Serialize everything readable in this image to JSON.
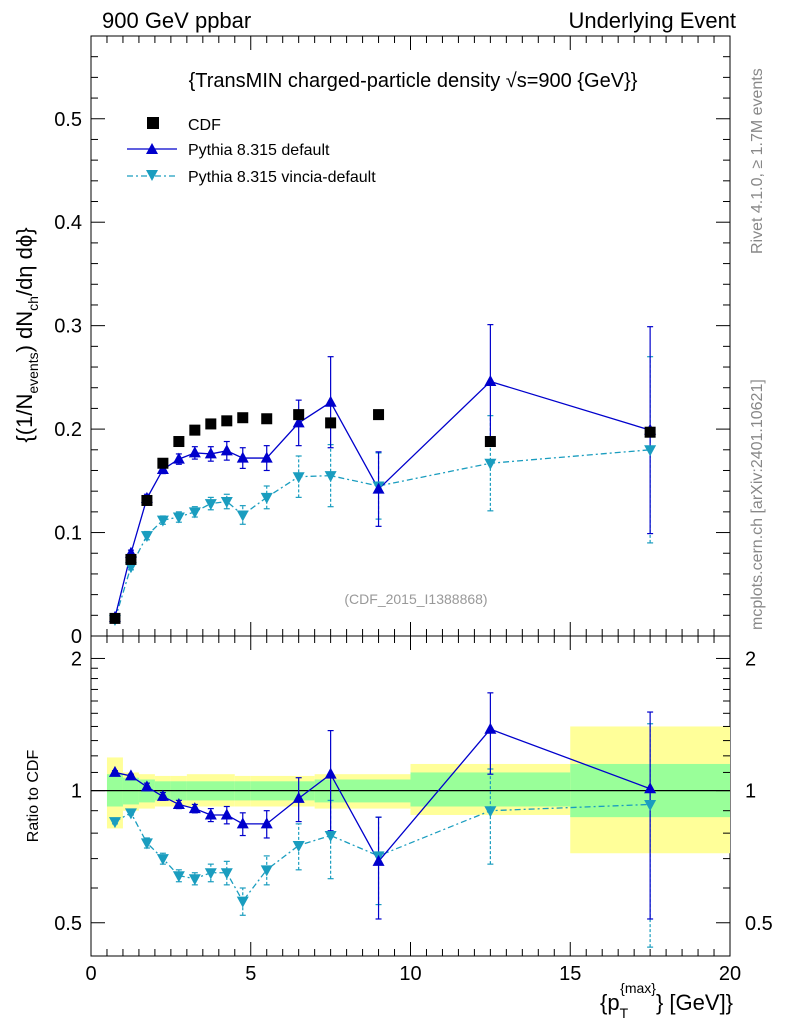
{
  "header": {
    "left": "900 GeV ppbar",
    "right": "Underlying Event"
  },
  "side_labels": {
    "upper": "Rivet 4.1.0, ≥ 1.7M events",
    "lower": "mcplots.cern.ch [arXiv:2401.10621]"
  },
  "colors": {
    "cdf": "#000000",
    "pythia": "#0000cc",
    "vincia": "#1a9dbf",
    "band_yellow": "#ffff99",
    "band_green": "#99ff99"
  },
  "chart_data": [
    {
      "type": "scatter",
      "title": "{TransMIN charged-particle density √s=900 {GeV}}",
      "ylabel": "{(1/N_events) dN_ch/dη dϕ}",
      "xlabel": "{p_T^{max}} [GeV]",
      "analysis_tag": "(CDF_2015_I1388868)",
      "xlim": [
        0,
        20
      ],
      "ylim": [
        0,
        0.58
      ],
      "yticks": [
        0,
        0.1,
        0.2,
        0.3,
        0.4,
        0.5
      ],
      "ytick_labels": [
        "0",
        "0.1",
        "0.2",
        "0.3",
        "0.4",
        "0.5"
      ],
      "xticks": [
        0,
        5,
        10,
        15,
        20
      ],
      "xtick_labels": [
        "0",
        "5",
        "10",
        "15",
        "20"
      ],
      "legend": [
        "CDF",
        "Pythia 8.315 default",
        "Pythia 8.315 vincia-default"
      ],
      "series": [
        {
          "name": "CDF",
          "style": "square",
          "x": [
            0.75,
            1.25,
            1.75,
            2.25,
            2.75,
            3.25,
            3.75,
            4.25,
            4.75,
            5.5,
            6.5,
            7.5,
            9.0,
            12.5,
            17.5
          ],
          "y": [
            0.017,
            0.074,
            0.131,
            0.167,
            0.188,
            0.199,
            0.205,
            0.208,
            0.211,
            0.21,
            0.214,
            0.206,
            0.214,
            0.188,
            0.197
          ]
        },
        {
          "name": "Pythia 8.315 default",
          "style": "triangle-up",
          "x": [
            0.75,
            1.25,
            1.75,
            2.25,
            2.75,
            3.25,
            3.75,
            4.25,
            4.75,
            5.5,
            6.5,
            7.5,
            9.0,
            12.5,
            17.5
          ],
          "y": [
            0.018,
            0.08,
            0.133,
            0.161,
            0.171,
            0.177,
            0.176,
            0.179,
            0.172,
            0.172,
            0.206,
            0.226,
            0.142,
            0.246,
            0.199
          ],
          "err": [
            0.002,
            0.003,
            0.004,
            0.004,
            0.005,
            0.006,
            0.007,
            0.009,
            0.01,
            0.012,
            0.022,
            0.044,
            0.036,
            0.055,
            0.1
          ]
        },
        {
          "name": "Pythia 8.315 vincia-default",
          "style": "triangle-down",
          "x": [
            0.75,
            1.25,
            1.75,
            2.25,
            2.75,
            3.25,
            3.75,
            4.25,
            4.75,
            5.5,
            6.5,
            7.5,
            9.0,
            12.5,
            17.5
          ],
          "y": [
            0.016,
            0.067,
            0.097,
            0.112,
            0.115,
            0.12,
            0.128,
            0.13,
            0.117,
            0.134,
            0.154,
            0.155,
            0.145,
            0.167,
            0.18
          ],
          "err": [
            0.002,
            0.003,
            0.004,
            0.004,
            0.005,
            0.005,
            0.006,
            0.007,
            0.009,
            0.011,
            0.02,
            0.03,
            0.032,
            0.046,
            0.09
          ]
        }
      ]
    },
    {
      "type": "scatter",
      "ylabel": "Ratio to CDF",
      "xlim": [
        0,
        20
      ],
      "ylim": [
        0.42,
        2.25
      ],
      "yscale": "log",
      "yticks": [
        0.5,
        1,
        2
      ],
      "ytick_labels": [
        "0.5",
        "1",
        "2"
      ],
      "bands": [
        {
          "x0": 0.5,
          "x1": 1.0,
          "stat": [
            0.92,
            1.09
          ],
          "total": [
            0.82,
            1.19
          ]
        },
        {
          "x0": 1.0,
          "x1": 1.5,
          "stat": [
            0.93,
            1.07
          ],
          "total": [
            0.9,
            1.1
          ]
        },
        {
          "x0": 1.5,
          "x1": 2.0,
          "stat": [
            0.94,
            1.06
          ],
          "total": [
            0.91,
            1.09
          ]
        },
        {
          "x0": 2.0,
          "x1": 2.5,
          "stat": [
            0.95,
            1.05
          ],
          "total": [
            0.92,
            1.08
          ]
        },
        {
          "x0": 2.5,
          "x1": 3.0,
          "stat": [
            0.95,
            1.05
          ],
          "total": [
            0.92,
            1.08
          ]
        },
        {
          "x0": 3.0,
          "x1": 4.5,
          "stat": [
            0.95,
            1.05
          ],
          "total": [
            0.92,
            1.09
          ]
        },
        {
          "x0": 4.5,
          "x1": 5.0,
          "stat": [
            0.95,
            1.05
          ],
          "total": [
            0.92,
            1.08
          ]
        },
        {
          "x0": 5.0,
          "x1": 7.0,
          "stat": [
            0.95,
            1.05
          ],
          "total": [
            0.92,
            1.08
          ]
        },
        {
          "x0": 7.0,
          "x1": 10.0,
          "stat": [
            0.94,
            1.06
          ],
          "total": [
            0.91,
            1.09
          ]
        },
        {
          "x0": 10.0,
          "x1": 15.0,
          "stat": [
            0.92,
            1.1
          ],
          "total": [
            0.88,
            1.15
          ]
        },
        {
          "x0": 15.0,
          "x1": 20.0,
          "stat": [
            0.87,
            1.15
          ],
          "total": [
            0.72,
            1.4
          ]
        }
      ],
      "series": [
        {
          "name": "Pythia 8.315 default",
          "style": "triangle-up",
          "x": [
            0.75,
            1.25,
            1.75,
            2.25,
            2.75,
            3.25,
            3.75,
            4.25,
            4.75,
            5.5,
            6.5,
            7.5,
            9.0,
            12.5,
            17.5
          ],
          "y": [
            1.1,
            1.08,
            1.02,
            0.97,
            0.93,
            0.91,
            0.88,
            0.88,
            0.84,
            0.84,
            0.96,
            1.09,
            0.69,
            1.38,
            1.01
          ],
          "err": [
            0.01,
            0.01,
            0.02,
            0.02,
            0.02,
            0.02,
            0.03,
            0.04,
            0.05,
            0.06,
            0.11,
            0.28,
            0.18,
            0.29,
            0.5
          ]
        },
        {
          "name": "Pythia 8.315 vincia-default",
          "style": "triangle-down",
          "x": [
            0.75,
            1.25,
            1.75,
            2.25,
            2.75,
            3.25,
            3.75,
            4.25,
            4.75,
            5.5,
            6.5,
            7.5,
            9.0,
            12.5,
            17.5
          ],
          "y": [
            0.85,
            0.89,
            0.76,
            0.7,
            0.64,
            0.63,
            0.65,
            0.65,
            0.56,
            0.66,
            0.75,
            0.79,
            0.71,
            0.9,
            0.93
          ],
          "err": [
            0.01,
            0.01,
            0.02,
            0.02,
            0.02,
            0.02,
            0.03,
            0.04,
            0.04,
            0.05,
            0.09,
            0.16,
            0.16,
            0.22,
            0.49
          ]
        }
      ]
    }
  ]
}
